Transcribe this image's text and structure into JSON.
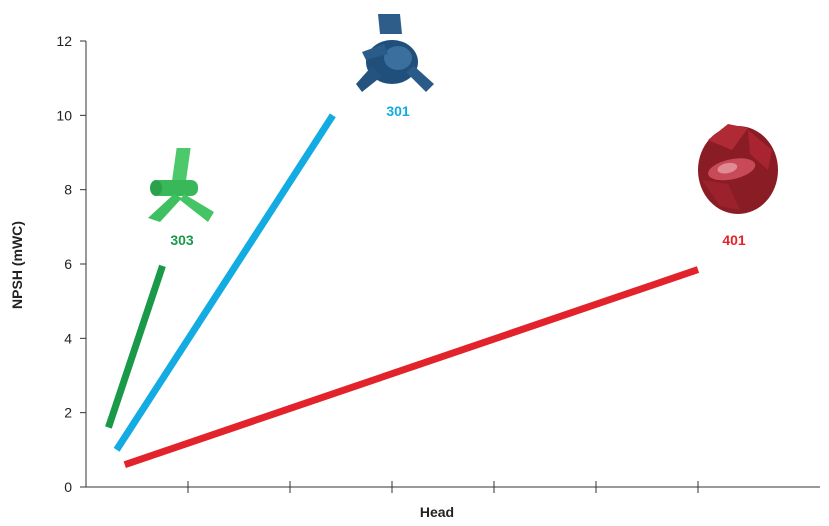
{
  "chart_data": {
    "type": "line",
    "xlabel": "Head",
    "ylabel": "NPSH (mWC)",
    "ylim": [
      0,
      12
    ],
    "yticks": [
      0,
      2,
      4,
      6,
      8,
      10,
      12
    ],
    "xlim": [
      0,
      7
    ],
    "xticks": [
      1,
      2,
      3,
      4,
      5,
      6
    ],
    "grid": false,
    "series": [
      {
        "name": "303",
        "color": "#1a9a48",
        "icon": "impeller-303-icon",
        "x": [
          0.22,
          0.75
        ],
        "y": [
          1.6,
          5.95
        ]
      },
      {
        "name": "301",
        "color": "#12ace2",
        "icon": "impeller-301-icon",
        "x": [
          0.3,
          2.42
        ],
        "y": [
          1.0,
          10.0
        ]
      },
      {
        "name": "401",
        "color": "#e3232b",
        "icon": "impeller-401-icon",
        "x": [
          0.38,
          6.0
        ],
        "y": [
          0.6,
          5.85
        ]
      }
    ]
  }
}
